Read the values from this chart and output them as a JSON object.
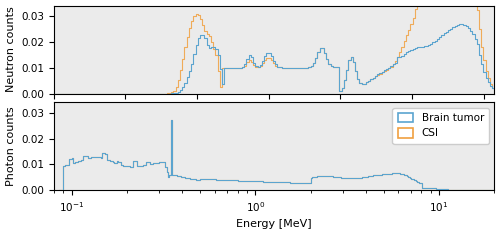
{
  "background_color": "#ebebeb",
  "blue_color": "#5ba4cf",
  "orange_color": "#f0a040",
  "neutron_xlim": [
    1e-11,
    20
  ],
  "neutron_ylim": [
    0,
    0.034
  ],
  "photon_xlim": [
    0.08,
    20
  ],
  "photon_ylim": [
    0,
    0.034
  ],
  "neutron_yticks": [
    0.0,
    0.01,
    0.02,
    0.03
  ],
  "photon_yticks": [
    0.0,
    0.01,
    0.02,
    0.03
  ],
  "ylabel_neutron": "Neutron counts",
  "ylabel_photon": "Photon counts",
  "xlabel": "Energy [MeV]",
  "legend_labels": [
    "Brain tumor",
    "CSI"
  ],
  "label_fontsize": 8,
  "tick_fontsize": 7.5
}
